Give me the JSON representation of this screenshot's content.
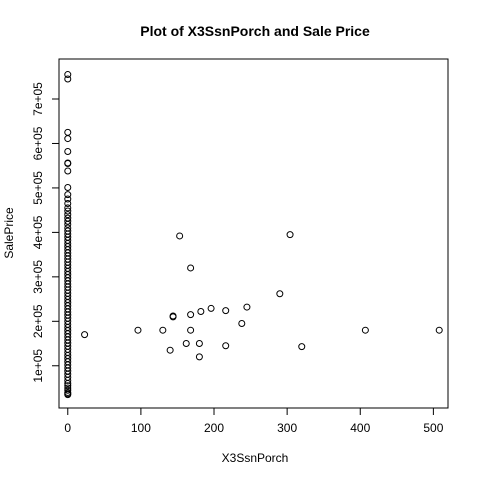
{
  "chart_data": {
    "type": "scatter",
    "title": "Plot of X3SsnPorch and Sale Price",
    "xlabel": "X3SsnPorch",
    "ylabel": "SalePrice",
    "xlim": [
      -12,
      520
    ],
    "ylim": [
      5000,
      790000
    ],
    "grid": false,
    "x_ticks": [
      0,
      100,
      200,
      300,
      400,
      500
    ],
    "y_ticks": [
      100000,
      200000,
      300000,
      400000,
      500000,
      600000,
      700000
    ],
    "x_tick_labels": [
      "0",
      "100",
      "200",
      "300",
      "400",
      "500"
    ],
    "y_tick_labels": [
      "1e+05",
      "2e+05",
      "3e+05",
      "4e+05",
      "5e+05",
      "6e+05",
      "7e+05"
    ],
    "points": [
      {
        "x": 0,
        "y": 755000
      },
      {
        "x": 0,
        "y": 745000
      },
      {
        "x": 0,
        "y": 625000
      },
      {
        "x": 0,
        "y": 611000
      },
      {
        "x": 0,
        "y": 582000
      },
      {
        "x": 0,
        "y": 556000
      },
      {
        "x": 0,
        "y": 555000
      },
      {
        "x": 0,
        "y": 538000
      },
      {
        "x": 0,
        "y": 501000
      },
      {
        "x": 0,
        "y": 485000
      },
      {
        "x": 0,
        "y": 475000
      },
      {
        "x": 0,
        "y": 465000
      },
      {
        "x": 0,
        "y": 455000
      },
      {
        "x": 0,
        "y": 448000
      },
      {
        "x": 0,
        "y": 440000
      },
      {
        "x": 0,
        "y": 432000
      },
      {
        "x": 0,
        "y": 425000
      },
      {
        "x": 0,
        "y": 418000
      },
      {
        "x": 0,
        "y": 410000
      },
      {
        "x": 0,
        "y": 403000
      },
      {
        "x": 0,
        "y": 396000
      },
      {
        "x": 0,
        "y": 389000
      },
      {
        "x": 0,
        "y": 382000
      },
      {
        "x": 0,
        "y": 375000
      },
      {
        "x": 0,
        "y": 368000
      },
      {
        "x": 0,
        "y": 361000
      },
      {
        "x": 0,
        "y": 354000
      },
      {
        "x": 0,
        "y": 347000
      },
      {
        "x": 0,
        "y": 340000
      },
      {
        "x": 0,
        "y": 333000
      },
      {
        "x": 0,
        "y": 326000
      },
      {
        "x": 0,
        "y": 319000
      },
      {
        "x": 0,
        "y": 312000
      },
      {
        "x": 0,
        "y": 305000
      },
      {
        "x": 0,
        "y": 298000
      },
      {
        "x": 0,
        "y": 291000
      },
      {
        "x": 0,
        "y": 284000
      },
      {
        "x": 0,
        "y": 277000
      },
      {
        "x": 0,
        "y": 270000
      },
      {
        "x": 0,
        "y": 263000
      },
      {
        "x": 0,
        "y": 256000
      },
      {
        "x": 0,
        "y": 249000
      },
      {
        "x": 0,
        "y": 242000
      },
      {
        "x": 0,
        "y": 235000
      },
      {
        "x": 0,
        "y": 228000
      },
      {
        "x": 0,
        "y": 221000
      },
      {
        "x": 0,
        "y": 214000
      },
      {
        "x": 0,
        "y": 207000
      },
      {
        "x": 0,
        "y": 200000
      },
      {
        "x": 0,
        "y": 193000
      },
      {
        "x": 0,
        "y": 186000
      },
      {
        "x": 0,
        "y": 179000
      },
      {
        "x": 0,
        "y": 172000
      },
      {
        "x": 0,
        "y": 165000
      },
      {
        "x": 0,
        "y": 158000
      },
      {
        "x": 0,
        "y": 151000
      },
      {
        "x": 0,
        "y": 144000
      },
      {
        "x": 0,
        "y": 137000
      },
      {
        "x": 0,
        "y": 130000
      },
      {
        "x": 0,
        "y": 123000
      },
      {
        "x": 0,
        "y": 116000
      },
      {
        "x": 0,
        "y": 109000
      },
      {
        "x": 0,
        "y": 102000
      },
      {
        "x": 0,
        "y": 95000
      },
      {
        "x": 0,
        "y": 88000
      },
      {
        "x": 0,
        "y": 81000
      },
      {
        "x": 0,
        "y": 74000
      },
      {
        "x": 0,
        "y": 67000
      },
      {
        "x": 0,
        "y": 60000
      },
      {
        "x": 0,
        "y": 55000
      },
      {
        "x": 0,
        "y": 50000
      },
      {
        "x": 0,
        "y": 45000
      },
      {
        "x": 0,
        "y": 40000
      },
      {
        "x": 0,
        "y": 37000
      },
      {
        "x": 0,
        "y": 35000
      },
      {
        "x": 23,
        "y": 170000
      },
      {
        "x": 96,
        "y": 180000
      },
      {
        "x": 130,
        "y": 180000
      },
      {
        "x": 140,
        "y": 135000
      },
      {
        "x": 144,
        "y": 212000
      },
      {
        "x": 144,
        "y": 210000
      },
      {
        "x": 153,
        "y": 392000
      },
      {
        "x": 162,
        "y": 150000
      },
      {
        "x": 168,
        "y": 180000
      },
      {
        "x": 168,
        "y": 215000
      },
      {
        "x": 168,
        "y": 320000
      },
      {
        "x": 180,
        "y": 120000
      },
      {
        "x": 180,
        "y": 150000
      },
      {
        "x": 182,
        "y": 222000
      },
      {
        "x": 196,
        "y": 229000
      },
      {
        "x": 216,
        "y": 145000
      },
      {
        "x": 216,
        "y": 224000
      },
      {
        "x": 238,
        "y": 195000
      },
      {
        "x": 245,
        "y": 232000
      },
      {
        "x": 290,
        "y": 262000
      },
      {
        "x": 304,
        "y": 395000
      },
      {
        "x": 320,
        "y": 143000
      },
      {
        "x": 407,
        "y": 180000
      },
      {
        "x": 508,
        "y": 180000
      }
    ]
  }
}
